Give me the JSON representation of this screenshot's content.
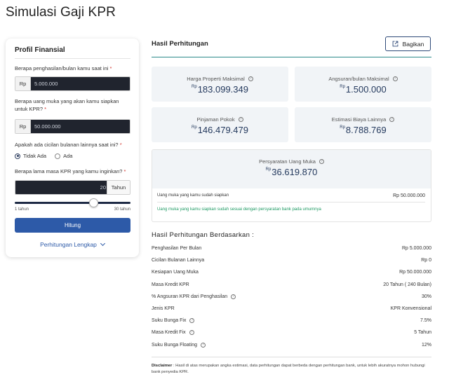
{
  "page": {
    "title": "Simulasi Gaji KPR"
  },
  "profile": {
    "title": "Profil Finansial",
    "income_question": "Berapa penghasilan/bulan kamu saat ini",
    "income_prefix": "Rp",
    "income_value": "5.000.000",
    "dp_question": "Berapa uang muka yang akan kamu siapkan untuk KPR?",
    "dp_prefix": "Rp",
    "dp_value": "50.000.000",
    "installment_question": "Apakah ada cicilan bulanan lainnya saat ini?",
    "option_no": "Tidak Ada",
    "option_yes": "Ada",
    "selected_option": "Tidak Ada",
    "tenor_question": "Berapa lama masa KPR yang kamu inginkan?",
    "tenor_value": "20",
    "tenor_suffix": "Tahun",
    "slider_min_label": "1 tahun",
    "slider_max_label": "30 tahun",
    "slider_min": 1,
    "slider_max": 30,
    "slider_value": 20,
    "calculate_label": "Hitung",
    "more_label": "Perhitungan Lengkap",
    "required_mark": "*"
  },
  "results": {
    "title": "Hasil Perhitungan",
    "share_label": "Bagikan",
    "currency": "Rp",
    "max_price_label": "Harga Properti Maksimal",
    "max_price_value": "183.099.349",
    "max_installment_label": "Angsuran/bulan Maksimal",
    "max_installment_value": "1.500.000",
    "principal_label": "Pinjaman Pokok",
    "principal_value": "146.479.479",
    "other_costs_label": "Estimasi Biaya Lainnya",
    "other_costs_value": "8.788.769",
    "dp_req_label": "Persyaratan Uang Muka",
    "dp_req_value": "36.619.870",
    "dp_prepared_label": "Uang muka yang kamu sudah siapkan",
    "dp_prepared_value": "Rp 50.000.000",
    "dp_note": "Uang muka yang kamu siapkan sudah sesuai dengan persyaratan bank pada umumnya"
  },
  "basis": {
    "title": "Hasil Perhitungan Berdasarkan :",
    "rows": [
      {
        "label": "Penghasilan Per Bulan",
        "value": "Rp 5.000.000",
        "info": false
      },
      {
        "label": "Cicilan Bulanan Lainnya",
        "value": "Rp 0",
        "info": false
      },
      {
        "label": "Kesiapan Uang Muka",
        "value": "Rp 50.000.000",
        "info": false
      },
      {
        "label": "Masa Kredit KPR",
        "value": "20 Tahun ( 240 Bulan)",
        "info": false
      },
      {
        "label": "% Angsuran KPR dari Penghasilan",
        "value": "30%",
        "info": true
      },
      {
        "label": "Jenis KPR",
        "value": "KPR Konvensional",
        "info": false
      },
      {
        "label": "Suku Bunga Fix",
        "value": "7.5%",
        "info": true
      },
      {
        "label": "Masa Kredit Fix",
        "value": "5 Tahun",
        "info": true
      },
      {
        "label": "Suku Bunga Floating",
        "value": "12%",
        "info": true
      }
    ]
  },
  "disclaimer": {
    "label": "Disclaimer",
    "text": ": Hasil di atas merupakan angka estimasi, data perhitungan dapat berbeda dengan perhitungan bank, untuk lebih akuratnya mohon hubungi bank penyedia KPR."
  },
  "icons": {
    "info": "info-icon",
    "share": "share-icon",
    "chevron": "chevron-down-icon"
  },
  "colors": {
    "primary": "#2d5aa8",
    "value_text": "#253a5e",
    "success": "#1e9a63",
    "accent_rule": "#2b8a8a"
  }
}
